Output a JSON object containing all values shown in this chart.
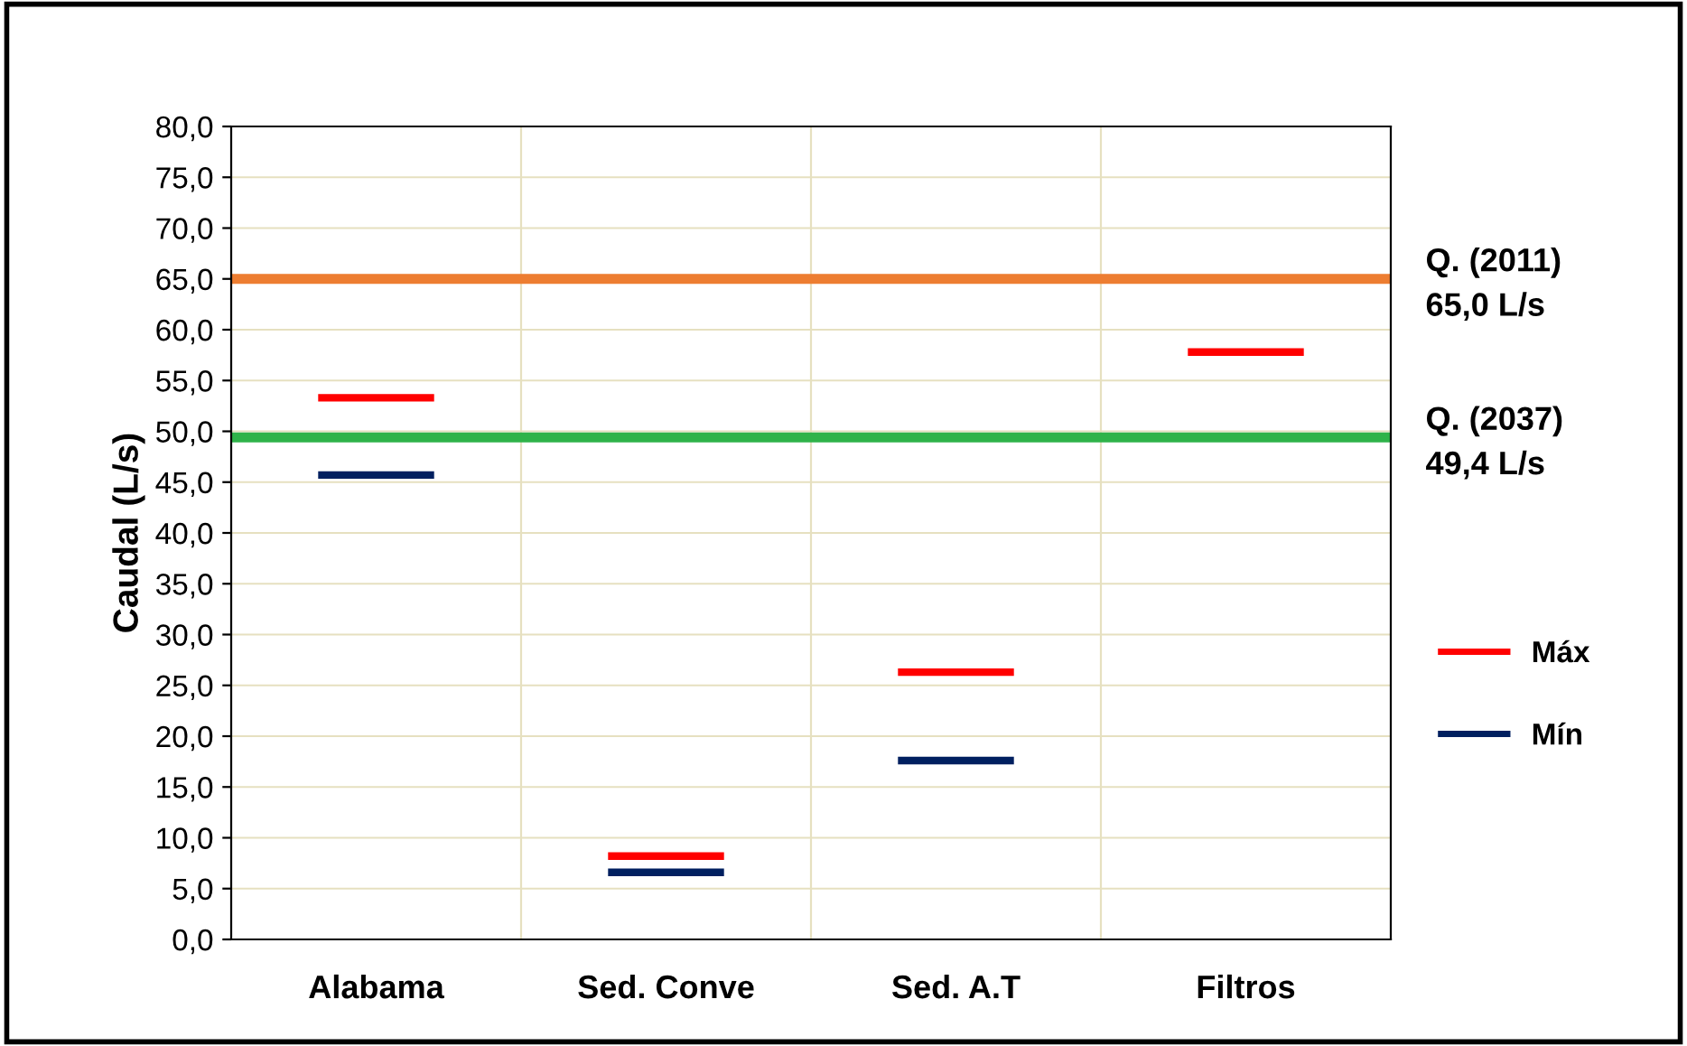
{
  "chart_data": {
    "type": "line",
    "ylabel": "Caudal (L/s)",
    "categories": [
      null,
      null,
      "Alabama",
      null,
      null,
      null,
      null,
      "Sed. Conve",
      null,
      null,
      null,
      null,
      "Sed. A.T",
      null,
      null,
      null,
      null,
      "Filtros",
      null,
      null
    ],
    "series": [
      {
        "name": "Máx",
        "color": "#ff0000",
        "values": [
          null,
          53.3,
          53.3,
          53.3,
          null,
          null,
          8.2,
          8.2,
          8.2,
          null,
          null,
          26.3,
          26.3,
          26.3,
          null,
          null,
          57.8,
          57.8,
          57.8,
          null
        ]
      },
      {
        "name": "Mín",
        "color": "#002060",
        "values": [
          null,
          45.7,
          45.7,
          45.7,
          null,
          null,
          6.6,
          6.6,
          6.6,
          null,
          null,
          17.6,
          17.6,
          17.6,
          null,
          null,
          null,
          null,
          null,
          null
        ]
      }
    ],
    "ref_lines": [
      {
        "axis": "y",
        "value": 65.0,
        "label": "Q. (2011)\n65,0 L/s",
        "color": "#ed7d31"
      },
      {
        "axis": "y",
        "value": 49.4,
        "label": "Q. (2037)\n49,4 L/s",
        "color": "#2fb34a"
      }
    ],
    "ylim": [
      0,
      80
    ],
    "yticks": [
      {
        "value": 0,
        "label": "0,0"
      },
      {
        "value": 5,
        "label": "5,0"
      },
      {
        "value": 10,
        "label": "10,0"
      },
      {
        "value": 15,
        "label": "15,0"
      },
      {
        "value": 20,
        "label": "20,0"
      },
      {
        "value": 25,
        "label": "25,0"
      },
      {
        "value": 30,
        "label": "30,0"
      },
      {
        "value": 35,
        "label": "35,0"
      },
      {
        "value": 40,
        "label": "40,0"
      },
      {
        "value": 45,
        "label": "45,0"
      },
      {
        "value": 50,
        "label": "50,0"
      },
      {
        "value": 55,
        "label": "55,0"
      },
      {
        "value": 60,
        "label": "60,0"
      },
      {
        "value": 65,
        "label": "65,0"
      },
      {
        "value": 70,
        "label": "70,0"
      },
      {
        "value": 75,
        "label": "75,0"
      },
      {
        "value": 80,
        "label": "80,0"
      }
    ],
    "grid": true,
    "legend": "right",
    "marker": "none",
    "line_style": "solid"
  }
}
